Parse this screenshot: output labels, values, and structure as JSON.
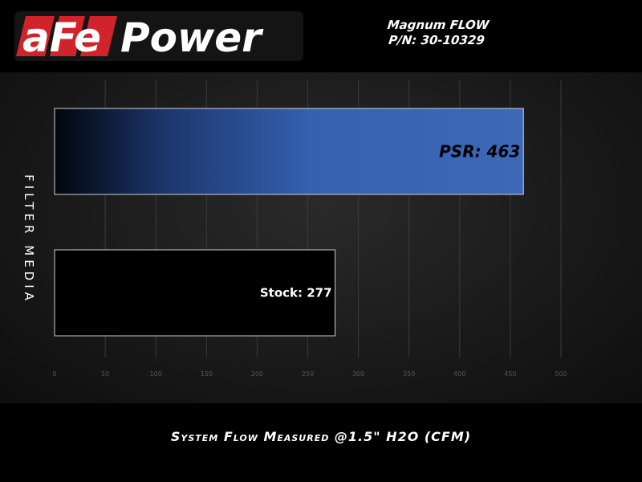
{
  "header": {
    "brand": "aFePower",
    "title_line1": "Magnum FLOW",
    "title_line2": "P/N: 30-10329"
  },
  "chart_data": {
    "type": "bar",
    "orientation": "horizontal",
    "categories": [
      "PSR",
      "Stock"
    ],
    "values": [
      463,
      277
    ],
    "data_labels": [
      "PSR: 463",
      "Stock: 277"
    ],
    "xlabel": "System Flow Measured @1.5\" H2O (CFM)",
    "ylabel": "FILTER MEDIA",
    "xlim": [
      0,
      500
    ],
    "xticks": [
      0,
      50,
      100,
      150,
      200,
      250,
      300,
      350,
      400,
      450,
      500
    ],
    "grid": true,
    "colors": {
      "PSR": "#3a66b8",
      "Stock": "#000000"
    }
  }
}
